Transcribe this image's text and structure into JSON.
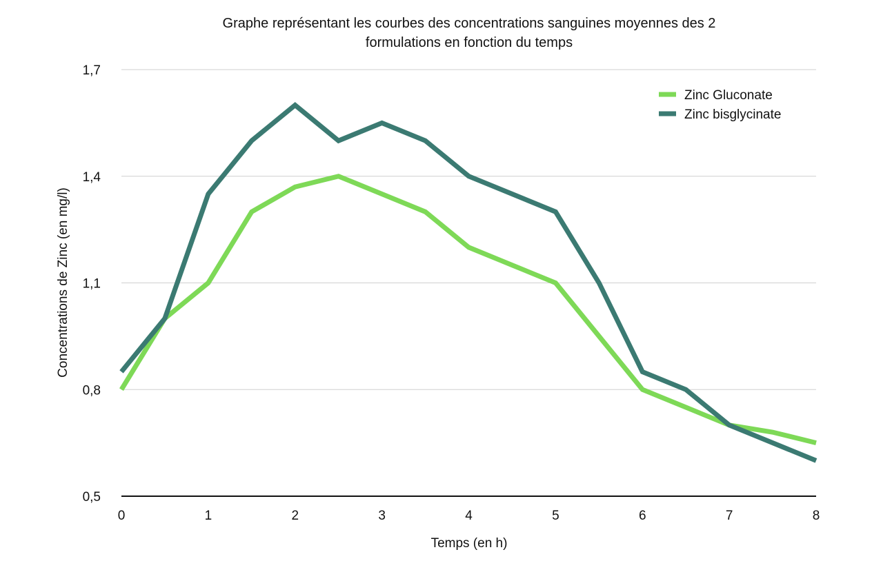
{
  "chart_data": {
    "type": "line",
    "title_lines": [
      "Graphe représentant les courbes des concentrations sanguines moyennes des 2",
      "formulations en fonction du temps"
    ],
    "xlabel": "Temps (en h)",
    "ylabel": "Concentrations de Zinc (en mg/l)",
    "xlim": [
      0,
      8
    ],
    "ylim": [
      0.5,
      1.7
    ],
    "x_ticks": [
      0,
      1,
      2,
      3,
      4,
      5,
      6,
      7,
      8
    ],
    "x_tick_labels": [
      "0",
      "1",
      "2",
      "3",
      "4",
      "5",
      "6",
      "7",
      "8"
    ],
    "y_ticks": [
      0.5,
      0.8,
      1.1,
      1.4,
      1.7
    ],
    "y_tick_labels": [
      "0,5",
      "0,8",
      "1,1",
      "1,4",
      "1,7"
    ],
    "grid": "horizontal",
    "legend_position": "top-right",
    "x": [
      0,
      0.5,
      1,
      1.5,
      2,
      2.5,
      3,
      3.5,
      4,
      4.5,
      5,
      5.5,
      6,
      6.5,
      7,
      7.5,
      8
    ],
    "series": [
      {
        "name": "Zinc Gluconate",
        "color": "#7ed957",
        "values": [
          0.8,
          1.0,
          1.1,
          1.3,
          1.37,
          1.4,
          1.35,
          1.3,
          1.2,
          1.15,
          1.1,
          0.95,
          0.8,
          0.75,
          0.7,
          0.68,
          0.65
        ]
      },
      {
        "name": "Zinc bisglycinate",
        "color": "#3b7a72",
        "values": [
          0.85,
          1.0,
          1.35,
          1.5,
          1.6,
          1.5,
          1.55,
          1.5,
          1.4,
          1.35,
          1.3,
          1.1,
          0.85,
          0.8,
          0.7,
          0.65,
          0.6
        ]
      }
    ]
  }
}
